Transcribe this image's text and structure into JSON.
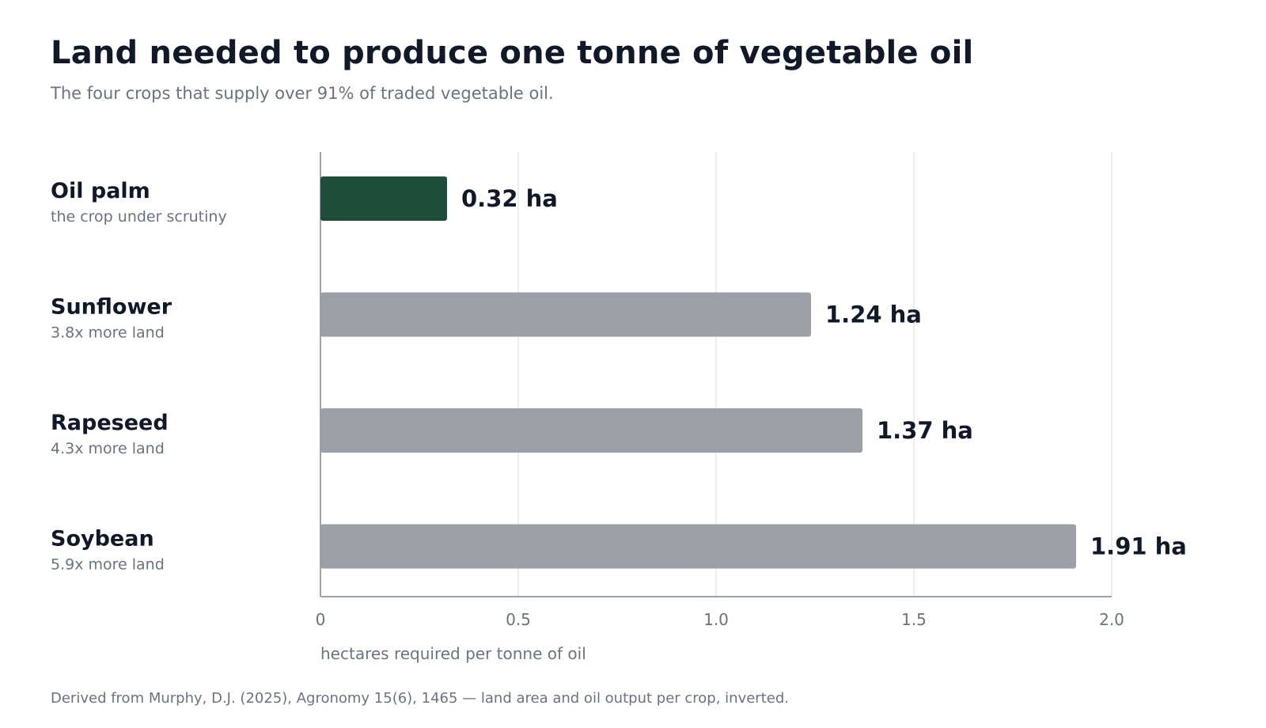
{
  "title": "Land needed to produce one tonne of vegetable oil",
  "subtitle": "The four crops that supply over 91% of traded vegetable oil.",
  "footnote": "Derived from Murphy, D.J. (2025), Agronomy 15(6), 1465 — land area and oil output per crop, inverted.",
  "colors": {
    "highlight": "#1f4d3a",
    "muted": "#9ca0a6",
    "grid": "#e5e7eb",
    "axis": "#9ca3af"
  },
  "chart_data": {
    "type": "bar",
    "orientation": "horizontal",
    "categories": [
      "Oil palm",
      "Sunflower",
      "Rapeseed",
      "Soybean"
    ],
    "category_notes": [
      "the crop under scrutiny",
      "3.8x more land",
      "4.3x more land",
      "5.9x more land"
    ],
    "values": [
      0.32,
      1.24,
      1.37,
      1.91
    ],
    "value_labels": [
      "0.32 ha",
      "1.24 ha",
      "1.37 ha",
      "1.91 ha"
    ],
    "highlighted": [
      "Oil palm"
    ],
    "xlabel": "hectares required per tonne of oil",
    "ylabel": "",
    "xlim": [
      0,
      2.0
    ],
    "xticks": [
      0,
      0.5,
      1.0,
      1.5,
      2.0
    ],
    "xtick_labels": [
      "0",
      "0.5",
      "1.0",
      "1.5",
      "2.0"
    ],
    "grid": true,
    "legend": "none"
  }
}
